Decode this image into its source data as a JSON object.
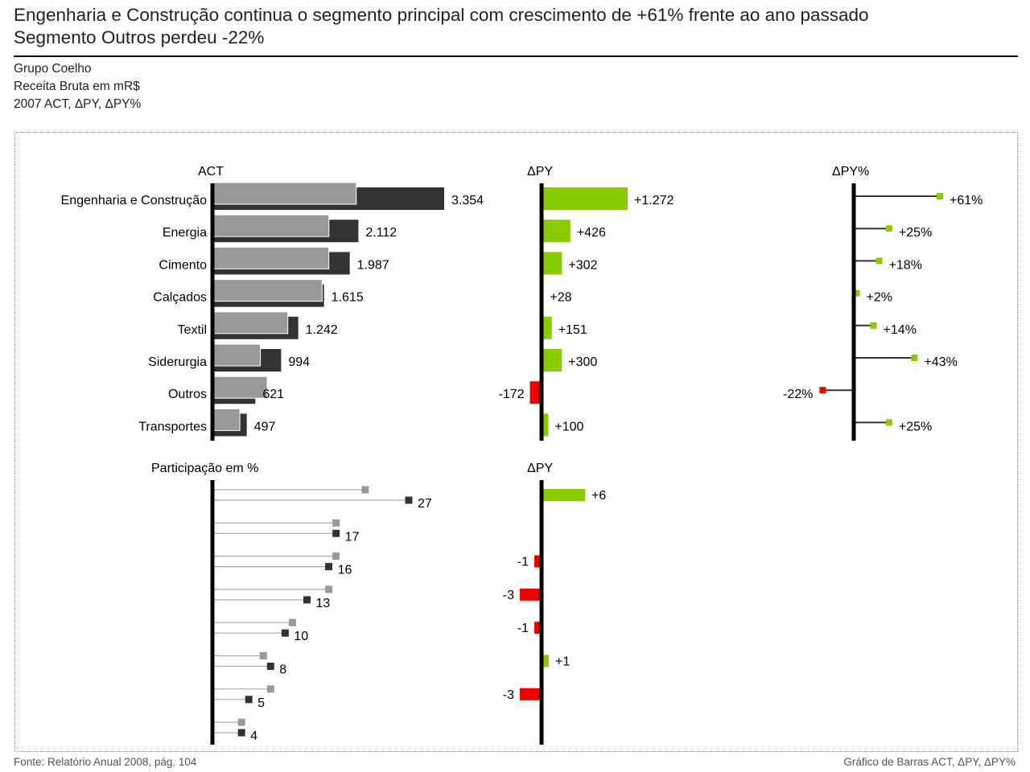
{
  "header": {
    "title_line1": "Engenharia e Construção continua o segmento principal com crescimento de +61% frente ao ano passado",
    "title_line2": "Segmento Outros perdeu -22%",
    "company": "Grupo Coelho",
    "measure": "Receita Bruta em mR$",
    "scenario": "2007 ACT, ΔPY, ΔPY%"
  },
  "footer": {
    "source": "Fonte: Relatório Anual 2008, pág. 104",
    "chart_kind": "Gráfico de Barras ACT, ΔPY, ΔPY%"
  },
  "colors": {
    "act": "#333333",
    "py": "#999999",
    "positive": "#88cc00",
    "negative": "#ee0000",
    "axis": "#000000"
  },
  "chart_data": [
    {
      "type": "bar",
      "panel": "act",
      "title": "ACT",
      "categories": [
        "Engenharia  e Construção",
        "Energia",
        "Cimento",
        "Calçados",
        "Textil",
        "Siderurgia",
        "Outros",
        "Transportes"
      ],
      "series": [
        {
          "role": "ACT",
          "values": [
            3354,
            2112,
            1987,
            1615,
            1242,
            994,
            621,
            497
          ]
        },
        {
          "role": "PY",
          "values": [
            2082,
            1686,
            1685,
            1587,
            1091,
            694,
            793,
            397
          ]
        }
      ],
      "labels": [
        "3.354",
        "2.112",
        "1.987",
        "1.615",
        "1.242",
        "994",
        "621",
        "497"
      ]
    },
    {
      "type": "bar",
      "panel": "delta_abs",
      "title": "ΔPY",
      "categories": [
        "Engenharia  e Construção",
        "Energia",
        "Cimento",
        "Calçados",
        "Textil",
        "Siderurgia",
        "Outros",
        "Transportes"
      ],
      "values": [
        1272,
        426,
        302,
        28,
        151,
        300,
        -172,
        100
      ],
      "labels": [
        "+1.272",
        "+426",
        "+302",
        "+28",
        "+151",
        "+300",
        "-172",
        "+100"
      ]
    },
    {
      "type": "scatter",
      "panel": "delta_pct",
      "title": "ΔPY%",
      "categories": [
        "Engenharia  e Construção",
        "Energia",
        "Cimento",
        "Calçados",
        "Textil",
        "Siderurgia",
        "Outros",
        "Transportes"
      ],
      "values": [
        61,
        25,
        18,
        2,
        14,
        43,
        -22,
        25
      ],
      "labels": [
        "+61%",
        "+25%",
        "+18%",
        "+2%",
        "+14%",
        "+43%",
        "-22%",
        "+25%"
      ]
    },
    {
      "type": "scatter",
      "panel": "share",
      "title": "Participação em %",
      "categories": [
        "Engenharia  e Construção",
        "Energia",
        "Cimento",
        "Calçados",
        "Textil",
        "Siderurgia",
        "Outros",
        "Transportes"
      ],
      "series": [
        {
          "role": "ACT",
          "values": [
            27,
            17,
            16,
            13,
            10,
            8,
            5,
            4
          ]
        },
        {
          "role": "PY",
          "values": [
            21,
            17,
            17,
            16,
            11,
            7,
            8,
            4
          ]
        }
      ],
      "labels": [
        "27",
        "17",
        "16",
        "13",
        "10",
        "8",
        "5",
        "4"
      ]
    },
    {
      "type": "bar",
      "panel": "share_delta",
      "title": "ΔPY",
      "categories": [
        "Engenharia  e Construção",
        "Energia",
        "Cimento",
        "Calçados",
        "Textil",
        "Siderurgia",
        "Outros",
        "Transportes"
      ],
      "values": [
        6,
        0,
        -1,
        -3,
        -1,
        1,
        -3,
        0
      ],
      "labels": [
        "+6",
        "",
        "-1",
        "-3",
        "-1",
        "+1",
        "-3",
        ""
      ]
    }
  ]
}
